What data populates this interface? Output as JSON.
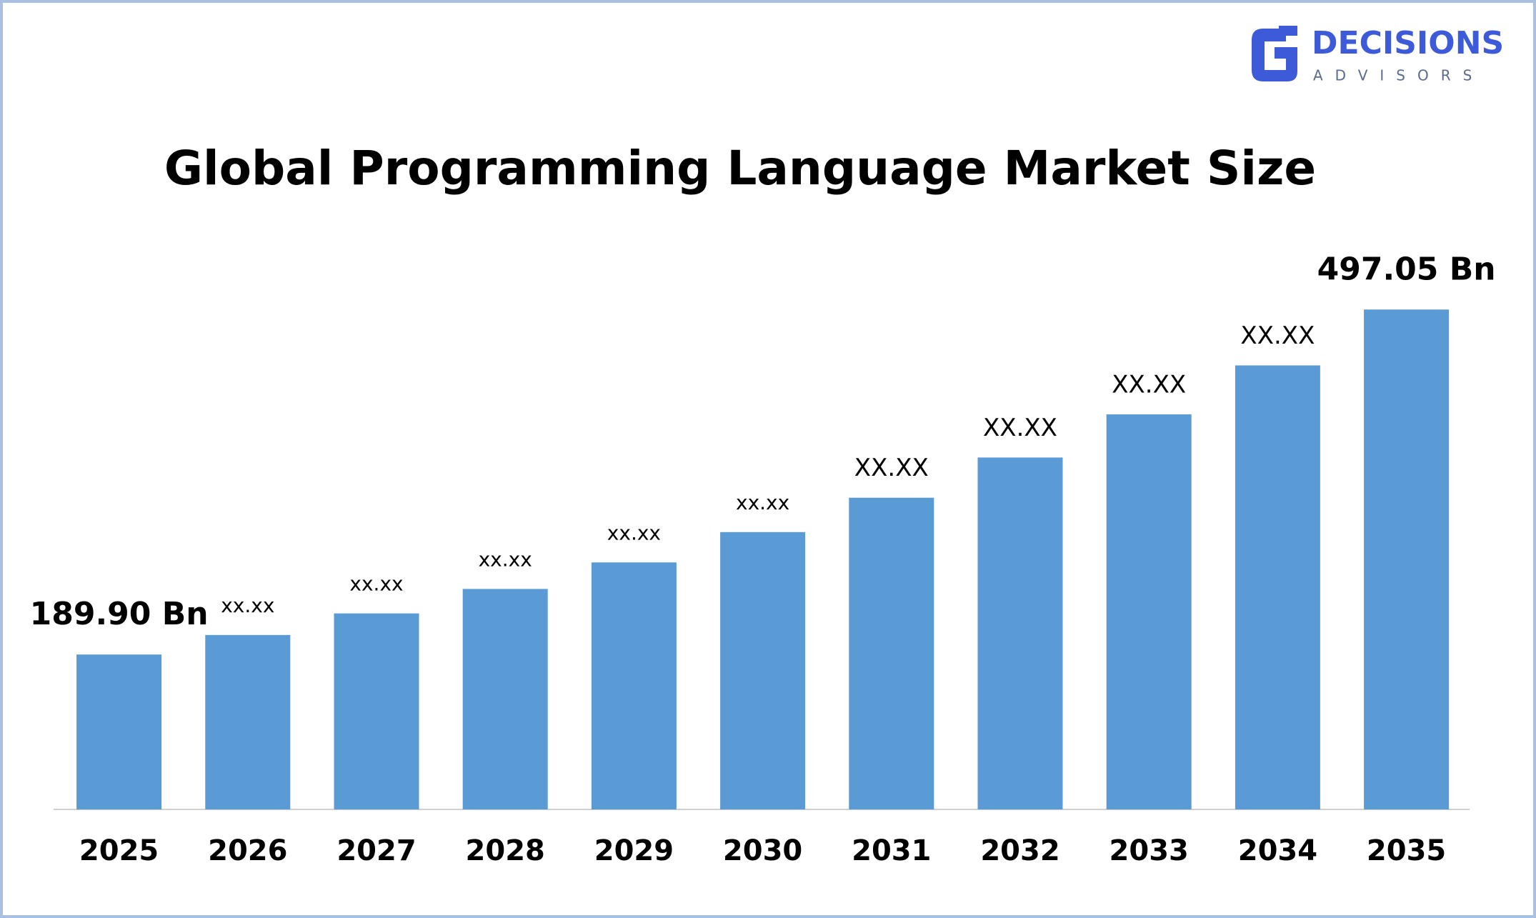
{
  "logo": {
    "name": "DECISIONS",
    "tagline": "ADVISORS"
  },
  "chart_data": {
    "type": "bar",
    "title": "Global Programming Language Market Size",
    "categories": [
      "2025",
      "2026",
      "2027",
      "2028",
      "2029",
      "2030",
      "2031",
      "2032",
      "2033",
      "2034",
      "2035"
    ],
    "values": [
      189.9,
      207.3,
      226.5,
      248.3,
      271.9,
      298.9,
      329.5,
      365.3,
      403.7,
      447.3,
      497.05
    ],
    "value_labels": [
      "189.90 Bn",
      "xx.xx",
      "xx.xx",
      "xx.xx",
      "xx.xx",
      "xx.xx",
      "XX.XX",
      "XX.XX",
      "XX.XX",
      "XX.XX",
      "497.05 Bn"
    ],
    "color": "#5b9bd5",
    "ylim": [
      52,
      550
    ]
  }
}
